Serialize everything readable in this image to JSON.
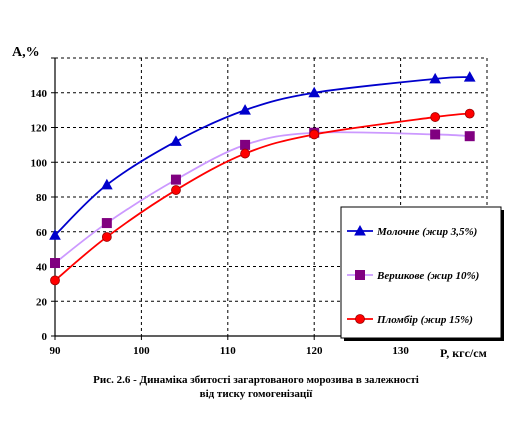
{
  "chart_data": {
    "type": "line",
    "ylabel": "А,%",
    "xlabel": "P, кгс/см",
    "xlim": [
      90,
      140
    ],
    "ylim": [
      0,
      160
    ],
    "x_ticks": [
      90,
      100,
      110,
      120,
      130
    ],
    "y_ticks": [
      0,
      20,
      40,
      60,
      80,
      100,
      120,
      140
    ],
    "grid": true,
    "legend_position": "right-middle",
    "series": [
      {
        "name": "Молочне (жир 3,5%)",
        "color": "#0000cc",
        "marker": "triangle",
        "points": [
          {
            "x": 90,
            "y": 58
          },
          {
            "x": 96,
            "y": 87
          },
          {
            "x": 104,
            "y": 112
          },
          {
            "x": 112,
            "y": 130
          },
          {
            "x": 120,
            "y": 140
          },
          {
            "x": 134,
            "y": 148
          },
          {
            "x": 138,
            "y": 149
          }
        ]
      },
      {
        "name": "Вершкове (жир 10%)",
        "color": "#800080",
        "line_color": "#cc99ff",
        "marker": "square",
        "points": [
          {
            "x": 90,
            "y": 42
          },
          {
            "x": 96,
            "y": 65
          },
          {
            "x": 104,
            "y": 90
          },
          {
            "x": 112,
            "y": 110
          },
          {
            "x": 120,
            "y": 117
          },
          {
            "x": 134,
            "y": 116
          },
          {
            "x": 138,
            "y": 115
          }
        ]
      },
      {
        "name": "Пломбір (жир 15%)",
        "color": "#ff0000",
        "marker_fill": "#ff0000",
        "marker": "circle",
        "points": [
          {
            "x": 90,
            "y": 32
          },
          {
            "x": 96,
            "y": 57
          },
          {
            "x": 104,
            "y": 84
          },
          {
            "x": 112,
            "y": 105
          },
          {
            "x": 120,
            "y": 116
          },
          {
            "x": 134,
            "y": 126
          },
          {
            "x": 138,
            "y": 128
          }
        ]
      }
    ]
  },
  "caption": {
    "line1": "Рис. 2.6 -  Динаміка збитості загартованого морозива в залежності",
    "line2": "від тиску гомогенізації"
  }
}
